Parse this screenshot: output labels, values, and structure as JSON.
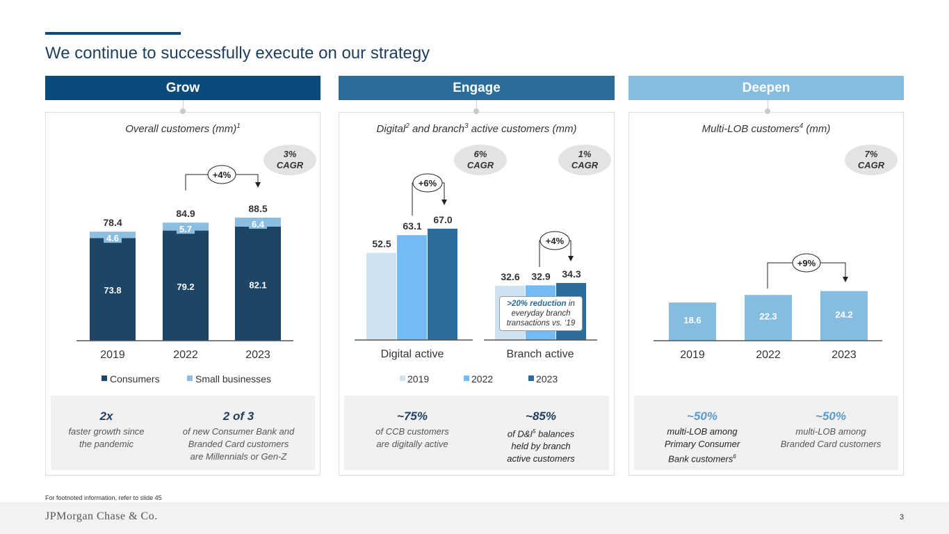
{
  "title": "We continue to successfully execute on our strategy",
  "columns": {
    "grow": "Grow",
    "engage": "Engage",
    "deepen": "Deepen"
  },
  "grow": {
    "subtitle": "Overall customers (mm)",
    "subtitle_sup": "1",
    "cagr_line1": "3%",
    "cagr_line2": "CAGR",
    "growth": "+4%",
    "stat1_big": "2x",
    "stat1_line1": "faster growth since",
    "stat1_line2": "the pandemic",
    "stat2_big": "2 of 3",
    "stat2_line1": "of new Consumer Bank and",
    "stat2_line2": "Branded Card customers",
    "stat2_line3": "are Millennials or Gen-Z"
  },
  "engage": {
    "subtitle_a": "Digital",
    "subtitle_sup_a": "2",
    "subtitle_b": " and branch",
    "subtitle_sup_b": "3",
    "subtitle_c": " active customers (mm)",
    "cagr1_line1": "6%",
    "cagr1_line2": "CAGR",
    "cagr2_line1": "1%",
    "cagr2_line2": "CAGR",
    "growth_digital": "+6%",
    "growth_branch": "+4%",
    "callout_bold": ">20% reduction",
    "callout_rest1": " in",
    "callout_line2": "everyday branch",
    "callout_line3": "transactions vs. ‘19",
    "stat1_big": "~75%",
    "stat1_line1": "of CCB customers",
    "stat1_line2": "are digitally active",
    "stat2_big": "~85%",
    "stat2_line1a": "of D&I",
    "stat2_line1_sup": "5",
    "stat2_line1b": " balances",
    "stat2_line2": "held by branch",
    "stat2_line3": "active customers"
  },
  "deepen": {
    "subtitle": "Multi-LOB customers",
    "subtitle_sup": "4",
    "subtitle_tail": " (mm)",
    "cagr_line1": "7%",
    "cagr_line2": "CAGR",
    "growth": "+9%",
    "stat1_big": "~50%",
    "stat1_line1": "multi-LOB among",
    "stat1_line2": "Primary Consumer",
    "stat1_line3": "Bank customers",
    "stat1_line3_sup": "6",
    "stat2_big": "~50%",
    "stat2_line1": "multi-LOB among",
    "stat2_line2": "Branded Card customers"
  },
  "chart_data": [
    {
      "type": "bar",
      "stacked": true,
      "title": "Overall customers (mm)",
      "categories": [
        "2019",
        "2022",
        "2023"
      ],
      "series": [
        {
          "name": "Consumers",
          "values": [
            73.8,
            79.2,
            82.1
          ],
          "color": "#1d4565"
        },
        {
          "name": "Small businesses",
          "values": [
            4.6,
            5.7,
            6.4
          ],
          "color": "#8bbee0"
        }
      ],
      "totals": [
        "78.4",
        "84.9",
        "88.5"
      ],
      "series_labels": [
        [
          "73.8",
          "79.2",
          "82.1"
        ],
        [
          "4.6",
          "5.7",
          "6.4"
        ]
      ],
      "ylim": [
        0,
        90
      ]
    },
    {
      "type": "bar",
      "title": "Digital and branch active customers (mm)",
      "categories": [
        "Digital active",
        "Branch active"
      ],
      "series": [
        {
          "name": "2019",
          "values": [
            52.5,
            32.6
          ],
          "labels": [
            "52.5",
            "32.6"
          ],
          "color": "#cfe2f1"
        },
        {
          "name": "2022",
          "values": [
            63.1,
            32.9
          ],
          "labels": [
            "63.1",
            "32.9"
          ],
          "color": "#73bcf3"
        },
        {
          "name": "2023",
          "values": [
            67.0,
            34.3
          ],
          "labels": [
            "67.0",
            "34.3"
          ],
          "color": "#2a6d9b"
        }
      ],
      "ylim": [
        0,
        70
      ]
    },
    {
      "type": "bar",
      "title": "Multi-LOB customers (mm)",
      "categories": [
        "2019",
        "2022",
        "2023"
      ],
      "values": [
        18.6,
        22.3,
        24.2
      ],
      "labels": [
        "18.6",
        "22.3",
        "24.2"
      ],
      "color": "#85bde0",
      "ylim": [
        0,
        70
      ]
    }
  ],
  "footnote": "For footnoted information, refer to slide 45",
  "logo": "JPMorgan Chase & Co.",
  "page_number": "3"
}
